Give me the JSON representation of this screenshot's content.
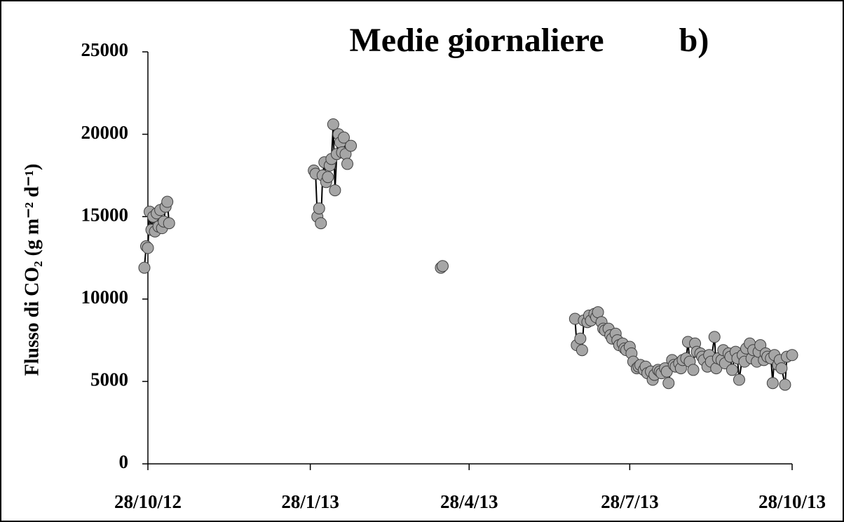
{
  "chart_data": {
    "type": "line",
    "title": "Medie giornaliere",
    "annotation": "b)",
    "ylabel": "Flusso di CO₂ (g m⁻² d⁻¹)",
    "line_color": "#000000",
    "marker_color": "#a6a6a6",
    "marker_edge": "#404040",
    "xlim": [
      "2012-10-28",
      "2013-10-28"
    ],
    "xticks": [
      {
        "value": "2012-10-28",
        "label": "28/10/12"
      },
      {
        "value": "2013-01-28",
        "label": "28/1/13"
      },
      {
        "value": "2013-04-28",
        "label": "28/4/13"
      },
      {
        "value": "2013-07-28",
        "label": "28/7/13"
      },
      {
        "value": "2013-10-28",
        "label": "28/10/13"
      }
    ],
    "ylim": [
      0,
      25000
    ],
    "yticks": [
      0,
      5000,
      10000,
      15000,
      20000,
      25000
    ],
    "grid": false,
    "x": [
      "2012-10-26",
      "2012-10-27",
      "2012-10-28",
      "2012-10-29",
      "2012-10-30",
      "2012-10-31",
      "2012-11-01",
      "2012-11-02",
      "2012-11-03",
      "2012-11-04",
      "2012-11-05",
      "2012-11-06",
      "2012-11-07",
      "2012-11-08",
      "2012-11-09",
      "2012-11-20",
      "2013-01-30",
      "2013-01-31",
      "2013-02-01",
      "2013-02-02",
      "2013-02-03",
      "2013-02-04",
      "2013-02-05",
      "2013-02-06",
      "2013-02-07",
      "2013-02-08",
      "2013-02-09",
      "2013-02-10",
      "2013-02-11",
      "2013-02-12",
      "2013-02-13",
      "2013-02-14",
      "2013-02-15",
      "2013-02-16",
      "2013-02-17",
      "2013-02-18",
      "2013-02-20",
      "2013-03-01",
      "2013-04-12",
      "2013-04-13",
      "2013-05-15",
      "2013-06-27",
      "2013-06-28",
      "2013-06-30",
      "2013-07-01",
      "2013-07-02",
      "2013-07-04",
      "2013-07-05",
      "2013-07-06",
      "2013-07-08",
      "2013-07-09",
      "2013-07-10",
      "2013-07-12",
      "2013-07-13",
      "2013-07-14",
      "2013-07-16",
      "2013-07-17",
      "2013-07-18",
      "2013-07-20",
      "2013-07-21",
      "2013-07-22",
      "2013-07-24",
      "2013-07-25",
      "2013-07-26",
      "2013-07-28",
      "2013-07-29",
      "2013-07-30",
      "2013-08-01",
      "2013-08-02",
      "2013-08-03",
      "2013-08-05",
      "2013-08-06",
      "2013-08-07",
      "2013-08-09",
      "2013-08-10",
      "2013-08-11",
      "2013-08-13",
      "2013-08-14",
      "2013-08-15",
      "2013-08-17",
      "2013-08-18",
      "2013-08-19",
      "2013-08-21",
      "2013-08-22",
      "2013-08-23",
      "2013-08-25",
      "2013-08-26",
      "2013-08-27",
      "2013-08-29",
      "2013-08-30",
      "2013-08-31",
      "2013-09-02",
      "2013-09-03",
      "2013-09-04",
      "2013-09-06",
      "2013-09-07",
      "2013-09-08",
      "2013-09-10",
      "2013-09-11",
      "2013-09-12",
      "2013-09-14",
      "2013-09-15",
      "2013-09-16",
      "2013-09-18",
      "2013-09-19",
      "2013-09-20",
      "2013-09-22",
      "2013-09-23",
      "2013-09-24",
      "2013-09-26",
      "2013-09-27",
      "2013-09-28",
      "2013-09-30",
      "2013-10-01",
      "2013-10-02",
      "2013-10-04",
      "2013-10-05",
      "2013-10-06",
      "2013-10-08",
      "2013-10-09",
      "2013-10-10",
      "2013-10-12",
      "2013-10-13",
      "2013-10-14",
      "2013-10-16",
      "2013-10-17",
      "2013-10-18",
      "2013-10-20",
      "2013-10-21",
      "2013-10-22",
      "2013-10-24",
      "2013-10-25",
      "2013-10-28"
    ],
    "values": [
      11900,
      13200,
      13100,
      15300,
      14200,
      15000,
      14100,
      15200,
      14400,
      15400,
      14300,
      14700,
      15600,
      15900,
      14600,
      null,
      17800,
      17600,
      15000,
      15500,
      14600,
      17500,
      18300,
      17100,
      17400,
      18100,
      18500,
      20600,
      16600,
      18800,
      20000,
      19500,
      18900,
      19800,
      18800,
      18200,
      19300,
      null,
      11900,
      12000,
      null,
      8800,
      7200,
      7600,
      6900,
      8700,
      8600,
      9000,
      8700,
      9100,
      8900,
      9200,
      8600,
      8200,
      8100,
      8200,
      7800,
      7600,
      7900,
      7500,
      7200,
      7300,
      7000,
      6900,
      7100,
      6700,
      6200,
      5800,
      5900,
      6000,
      5700,
      5900,
      5500,
      5600,
      5100,
      5400,
      5700,
      5600,
      5500,
      5800,
      5600,
      4900,
      6300,
      6000,
      5900,
      6100,
      5800,
      6300,
      6400,
      7400,
      6200,
      5700,
      7300,
      6800,
      6700,
      6500,
      6300,
      5900,
      6600,
      6200,
      7700,
      5800,
      6400,
      6300,
      6900,
      6100,
      6700,
      6500,
      5700,
      6800,
      6400,
      5100,
      6600,
      6200,
      7000,
      7300,
      6400,
      6900,
      6200,
      6800,
      7200,
      6300,
      6700,
      6500,
      6400,
      4900,
      6600,
      6000,
      6300,
      5800,
      4800,
      6500,
      6600
    ]
  }
}
